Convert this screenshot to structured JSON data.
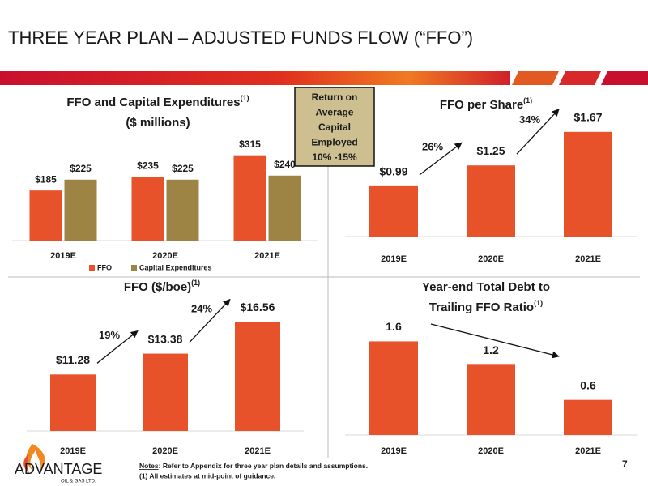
{
  "title": "THREE YEAR PLAN – ADJUSTED FUNDS FLOW (“FFO”)",
  "callout": {
    "lines": [
      "Return on",
      "Average",
      "Capital",
      "Employed",
      "10% -15%"
    ]
  },
  "chart_data": [
    {
      "type": "bar",
      "title_lines": [
        "FFO and Capital Expenditures"
      ],
      "title_note": "(1)",
      "subtitle": "($ millions)",
      "categories": [
        "2019E",
        "2020E",
        "2021E"
      ],
      "series": [
        {
          "name": "FFO",
          "color": "#e8522a",
          "values": [
            185,
            235,
            315
          ],
          "value_labels": [
            "$185",
            "$235",
            "$315"
          ]
        },
        {
          "name": "Capital Expenditures",
          "color": "#9d8444",
          "values": [
            225,
            225,
            240
          ],
          "value_labels": [
            "$225",
            "$225",
            "$240"
          ]
        }
      ],
      "ylim": [
        0,
        350
      ],
      "legend": "bottom"
    },
    {
      "type": "bar",
      "title_lines": [
        "FFO per Share"
      ],
      "title_note": "(1)",
      "categories": [
        "2019E",
        "2020E",
        "2021E"
      ],
      "values": [
        0.99,
        1.25,
        1.67
      ],
      "value_labels": [
        "$0.99",
        "$1.25",
        "$1.67"
      ],
      "color": "#e8522a",
      "ylim": [
        0.36,
        1.8
      ],
      "annotations": [
        "26%",
        "34%"
      ]
    },
    {
      "type": "bar",
      "title_lines": [
        "FFO ($/boe)"
      ],
      "title_note": "(1)",
      "categories": [
        "2019E",
        "2020E",
        "2021E"
      ],
      "values": [
        11.28,
        13.38,
        16.56
      ],
      "value_labels": [
        "$11.28",
        "$13.38",
        "$16.56"
      ],
      "color": "#e8522a",
      "ylim": [
        5.6,
        17.5
      ],
      "annotations": [
        "19%",
        "24%"
      ]
    },
    {
      "type": "bar",
      "title_lines": [
        "Year-end Total Debt to",
        "Trailing FFO Ratio"
      ],
      "title_note": "(1)",
      "categories": [
        "2019E",
        "2020E",
        "2021E"
      ],
      "values": [
        1.6,
        1.2,
        0.6
      ],
      "color": "#e8522a",
      "ylim": [
        0,
        1.8
      ]
    }
  ],
  "footer": {
    "logo": "ADVANTAGE",
    "logo_sub": "OIL & GAS LTD.",
    "notes_label": "Notes",
    "notes": ": Refer to Appendix for three year plan details and assumptions.",
    "footnote": "(1) All estimates at mid-point of guidance.",
    "page_number": "7"
  }
}
